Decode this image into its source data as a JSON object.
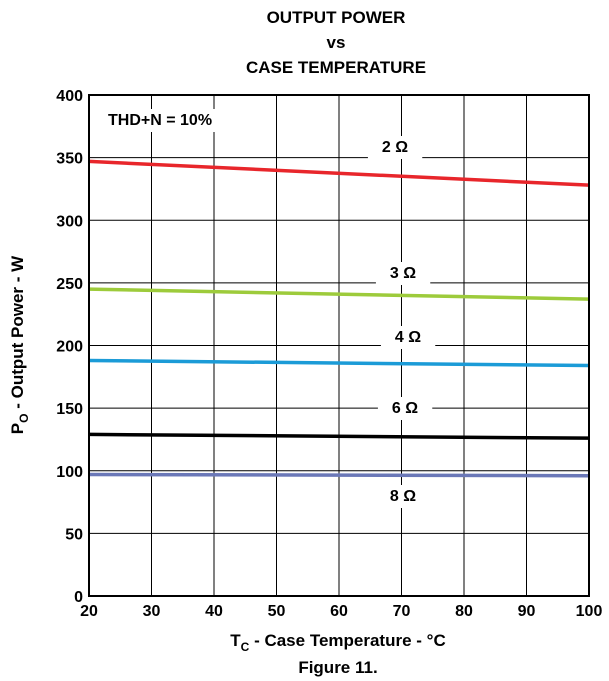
{
  "chart_data": {
    "type": "line",
    "title_lines": [
      "OUTPUT POWER",
      "vs",
      "CASE TEMPERATURE"
    ],
    "xlabel": {
      "main": "T",
      "sub": "C",
      "rest": " - Case Temperature - °C"
    },
    "ylabel": {
      "main": "P",
      "sub": "O",
      "rest": " - Output Power - W"
    },
    "xlim": [
      20,
      100
    ],
    "ylim": [
      0,
      400
    ],
    "xticks": [
      20,
      30,
      40,
      50,
      60,
      70,
      80,
      90,
      100
    ],
    "yticks": [
      0,
      50,
      100,
      150,
      200,
      250,
      300,
      350,
      400
    ],
    "grid": true,
    "annotation": "THD+N = 10%",
    "caption": "Figure 11.",
    "series": [
      {
        "name": "2 Ω",
        "color": "#e8262b",
        "x": [
          20,
          100
        ],
        "y": [
          347,
          328
        ]
      },
      {
        "name": "3 Ω",
        "color": "#9dcb3b",
        "x": [
          20,
          100
        ],
        "y": [
          245,
          237
        ]
      },
      {
        "name": "4 Ω",
        "color": "#1b9bd7",
        "x": [
          20,
          100
        ],
        "y": [
          188,
          184
        ]
      },
      {
        "name": "6 Ω",
        "color": "#000000",
        "x": [
          20,
          100
        ],
        "y": [
          129,
          126
        ]
      },
      {
        "name": "8 Ω",
        "color": "#6b78b8",
        "x": [
          20,
          100
        ],
        "y": [
          97,
          96
        ]
      }
    ]
  }
}
